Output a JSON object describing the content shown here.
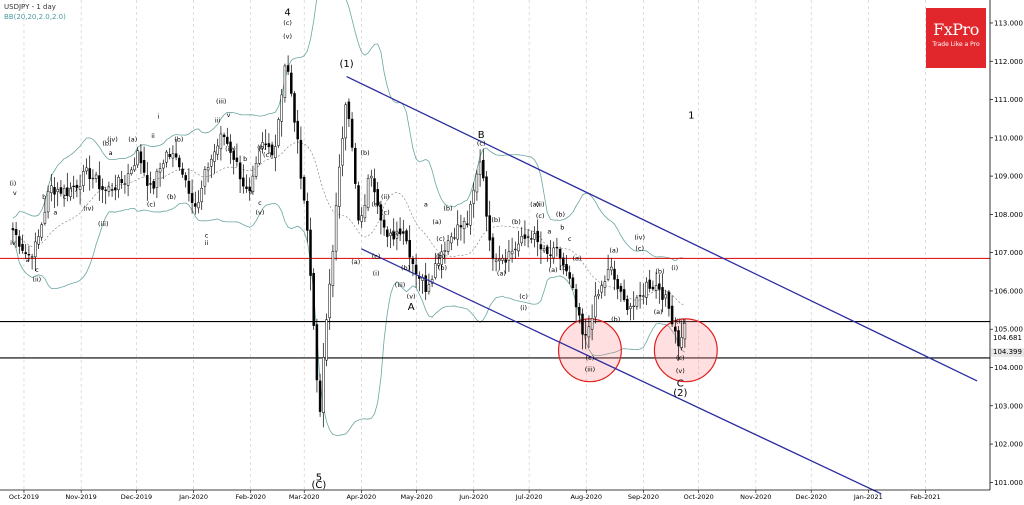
{
  "header": {
    "symbol_label": "USDJPY - 1 day",
    "bb_label": "BB(20,20,2.0,2.0)"
  },
  "logo": {
    "brand": "FxPro",
    "tagline": "Trade Like a Pro"
  },
  "price_badges": [
    {
      "text": "104.681",
      "bg": "#ffffff",
      "fg": "#000000"
    },
    {
      "text": "104.399",
      "bg": "#e8e8e8",
      "fg": "#000000"
    }
  ],
  "colors": {
    "candle": "#000000",
    "bollinger": "#6aa6a2",
    "channel": "#2c2ca0",
    "resistance": "#e02020",
    "support": "#000000",
    "circle_fill": "rgba(255,140,140,0.28)",
    "circle_stroke": "#e02020"
  },
  "chart_data": {
    "type": "candlestick",
    "title": "USDJPY - 1 day",
    "ylim": [
      100.8,
      113.6
    ],
    "y_ticks": [
      "101.000",
      "102.000",
      "103.000",
      "104.000",
      "105.000",
      "106.000",
      "107.000",
      "108.000",
      "109.000",
      "110.000",
      "111.000",
      "112.000",
      "113.000"
    ],
    "x_ticks": [
      "Oct-2019",
      "Nov-2019",
      "Dec-2019",
      "Jan-2020",
      "Feb-2020",
      "Mar-2020",
      "Apr-2020",
      "May-2020",
      "Jun-2020",
      "Jul-2020",
      "Aug-2020",
      "Sep-2020",
      "Oct-2020",
      "Nov-2020",
      "Dec-2020",
      "Jan-2021",
      "Feb-2021"
    ],
    "horizontal_levels": [
      {
        "value": 106.85,
        "color": "#e02020",
        "kind": "resistance"
      },
      {
        "value": 105.2,
        "color": "#000000",
        "kind": "support"
      },
      {
        "value": 104.25,
        "color": "#000000",
        "kind": "support"
      }
    ],
    "close_path": [
      [
        "2019-09-25",
        107.6
      ],
      [
        "2019-10-03",
        106.9
      ],
      [
        "2019-10-08",
        107.2
      ],
      [
        "2019-10-15",
        108.7
      ],
      [
        "2019-10-25",
        108.6
      ],
      [
        "2019-11-05",
        109.1
      ],
      [
        "2019-11-14",
        108.6
      ],
      [
        "2019-11-25",
        108.9
      ],
      [
        "2019-12-02",
        109.6
      ],
      [
        "2019-12-09",
        108.6
      ],
      [
        "2019-12-17",
        109.6
      ],
      [
        "2019-12-24",
        109.4
      ],
      [
        "2020-01-03",
        108.1
      ],
      [
        "2020-01-08",
        109.2
      ],
      [
        "2020-01-17",
        110.1
      ],
      [
        "2020-01-23",
        109.5
      ],
      [
        "2020-01-31",
        108.4
      ],
      [
        "2020-02-07",
        109.8
      ],
      [
        "2020-02-14",
        109.7
      ],
      [
        "2020-02-20",
        112.1
      ],
      [
        "2020-02-25",
        110.4
      ],
      [
        "2020-03-02",
        108.0
      ],
      [
        "2020-03-06",
        105.4
      ],
      [
        "2020-03-09",
        102.4
      ],
      [
        "2020-03-12",
        104.6
      ],
      [
        "2020-03-17",
        107.4
      ],
      [
        "2020-03-24",
        111.3
      ],
      [
        "2020-03-31",
        107.5
      ],
      [
        "2020-04-06",
        109.2
      ],
      [
        "2020-04-15",
        107.3
      ],
      [
        "2020-04-23",
        107.7
      ],
      [
        "2020-04-30",
        106.6
      ],
      [
        "2020-05-06",
        106.1
      ],
      [
        "2020-05-15",
        107.1
      ],
      [
        "2020-05-22",
        107.6
      ],
      [
        "2020-05-29",
        107.8
      ],
      [
        "2020-06-05",
        109.6
      ],
      [
        "2020-06-10",
        107.0
      ],
      [
        "2020-06-18",
        106.9
      ],
      [
        "2020-06-25",
        107.2
      ],
      [
        "2020-07-02",
        107.5
      ],
      [
        "2020-07-10",
        106.9
      ],
      [
        "2020-07-17",
        107.0
      ],
      [
        "2020-07-24",
        106.1
      ],
      [
        "2020-07-31",
        104.6
      ],
      [
        "2020-08-05",
        105.6
      ],
      [
        "2020-08-14",
        106.6
      ],
      [
        "2020-08-21",
        105.7
      ],
      [
        "2020-08-28",
        105.6
      ],
      [
        "2020-09-03",
        106.2
      ],
      [
        "2020-09-10",
        106.1
      ],
      [
        "2020-09-16",
        105.4
      ],
      [
        "2020-09-21",
        104.5
      ],
      [
        "2020-09-24",
        105.4
      ]
    ],
    "channel_lines": [
      {
        "from": [
          "2020-03-24",
          111.6
        ],
        "to": [
          "2021-03-01",
          103.65
        ]
      },
      {
        "from": [
          "2020-04-01",
          107.1
        ],
        "to": [
          "2021-01-08",
          100.7
        ]
      }
    ],
    "circles": [
      {
        "center": [
          "2020-08-03",
          104.45
        ],
        "radius_price": 0.82
      },
      {
        "center": [
          "2020-09-24",
          104.45
        ],
        "radius_price": 0.82
      }
    ],
    "wave_labels": [
      {
        "t": "2019-09-25",
        "y": 108.75,
        "text": "(i)"
      },
      {
        "t": "2019-09-26",
        "y": 108.5,
        "text": "v"
      },
      {
        "t": "2019-09-25",
        "y": 107.2,
        "text": "iv"
      },
      {
        "t": "2019-10-03",
        "y": 106.75,
        "text": "a"
      },
      {
        "t": "2019-10-08",
        "y": 106.25,
        "text": "(ii)"
      },
      {
        "t": "2019-10-08",
        "y": 106.5,
        "text": "c"
      },
      {
        "t": "2019-10-12",
        "y": 108.4,
        "text": "b"
      },
      {
        "t": "2019-10-18",
        "y": 108.0,
        "text": "a"
      },
      {
        "t": "2019-10-23",
        "y": 108.4,
        "text": "c"
      },
      {
        "t": "2019-10-28",
        "y": 108.6,
        "text": "(i)"
      },
      {
        "t": "2019-11-05",
        "y": 108.1,
        "text": "(iv)"
      },
      {
        "t": "2019-11-13",
        "y": 107.7,
        "text": "(iii)"
      },
      {
        "t": "2019-11-15",
        "y": 109.8,
        "text": "(b)"
      },
      {
        "t": "2019-11-18",
        "y": 109.9,
        "text": "(iv)"
      },
      {
        "t": "2019-11-17",
        "y": 109.55,
        "text": "a"
      },
      {
        "t": "2019-11-29",
        "y": 109.9,
        "text": "(a)"
      },
      {
        "t": "2019-12-09",
        "y": 108.2,
        "text": "(c)"
      },
      {
        "t": "2019-12-10",
        "y": 110.0,
        "text": "ii"
      },
      {
        "t": "2019-12-13",
        "y": 110.5,
        "text": "i"
      },
      {
        "t": "2019-12-20",
        "y": 108.4,
        "text": "(b)"
      },
      {
        "t": "2019-12-24",
        "y": 109.9,
        "text": "(b)"
      },
      {
        "t": "2020-01-08",
        "y": 107.4,
        "text": "c"
      },
      {
        "t": "2020-01-08",
        "y": 107.2,
        "text": "ii"
      },
      {
        "t": "2020-01-14",
        "y": 110.4,
        "text": "iii"
      },
      {
        "t": "2020-01-16",
        "y": 110.9,
        "text": "(iii)"
      },
      {
        "t": "2020-01-20",
        "y": 110.55,
        "text": "v"
      },
      {
        "t": "2020-01-21",
        "y": 109.65,
        "text": "(iv)"
      },
      {
        "t": "2020-01-29",
        "y": 109.4,
        "text": "b"
      },
      {
        "t": "2020-02-01",
        "y": 108.55,
        "text": "a"
      },
      {
        "t": "2020-02-06",
        "y": 108.0,
        "text": "(v)"
      },
      {
        "t": "2020-02-06",
        "y": 108.25,
        "text": "c"
      },
      {
        "t": "2020-02-07",
        "y": 109.7,
        "text": "(b)"
      },
      {
        "t": "2020-02-10",
        "y": 109.5,
        "text": "(c)"
      },
      {
        "t": "2020-02-21",
        "y": 113.2,
        "text": "4"
      },
      {
        "t": "2020-02-21",
        "y": 112.95,
        "text": "(c)"
      },
      {
        "t": "2020-02-21",
        "y": 112.6,
        "text": "(v)"
      },
      {
        "t": "2020-03-09",
        "y": 101.05,
        "text": "5"
      },
      {
        "t": "2020-03-09",
        "y": 100.85,
        "text": "(C)"
      },
      {
        "t": "2020-03-24",
        "y": 111.85,
        "text": "(1)"
      },
      {
        "t": "2020-03-29",
        "y": 106.7,
        "text": "(a)"
      },
      {
        "t": "2020-04-03",
        "y": 109.55,
        "text": "(b)"
      },
      {
        "t": "2020-04-09",
        "y": 108.2,
        "text": "(a)"
      },
      {
        "t": "2020-04-09",
        "y": 106.85,
        "text": "(c)"
      },
      {
        "t": "2020-04-09",
        "y": 106.4,
        "text": "(i)"
      },
      {
        "t": "2020-04-14",
        "y": 108.4,
        "text": "(ii)"
      },
      {
        "t": "2020-04-14",
        "y": 108.0,
        "text": "(c)"
      },
      {
        "t": "2020-04-20",
        "y": 107.45,
        "text": "(iv)"
      },
      {
        "t": "2020-04-22",
        "y": 106.1,
        "text": "(iii)"
      },
      {
        "t": "2020-04-25",
        "y": 106.55,
        "text": "(b)"
      },
      {
        "t": "2020-04-28",
        "y": 105.8,
        "text": "(v)"
      },
      {
        "t": "2020-04-28",
        "y": 105.5,
        "text": "A"
      },
      {
        "t": "2020-05-06",
        "y": 108.2,
        "text": "a"
      },
      {
        "t": "2020-05-12",
        "y": 107.75,
        "text": "(a)"
      },
      {
        "t": "2020-05-14",
        "y": 107.3,
        "text": "(c)"
      },
      {
        "t": "2020-05-14",
        "y": 106.85,
        "text": "(b)"
      },
      {
        "t": "2020-05-18",
        "y": 108.1,
        "text": "(b)"
      },
      {
        "t": "2020-05-15",
        "y": 106.55,
        "text": "(b)"
      },
      {
        "t": "2020-06-05",
        "y": 110.0,
        "text": "B"
      },
      {
        "t": "2020-06-05",
        "y": 109.8,
        "text": "(c)"
      },
      {
        "t": "2020-06-13",
        "y": 107.8,
        "text": "(b)"
      },
      {
        "t": "2020-06-16",
        "y": 106.4,
        "text": "(a)"
      },
      {
        "t": "2020-06-24",
        "y": 107.75,
        "text": "(b)"
      },
      {
        "t": "2020-06-28",
        "y": 105.8,
        "text": "(c)"
      },
      {
        "t": "2020-06-28",
        "y": 105.5,
        "text": "(i)"
      },
      {
        "t": "2020-07-04",
        "y": 108.2,
        "text": "(a)"
      },
      {
        "t": "2020-07-07",
        "y": 108.2,
        "text": "(ii)"
      },
      {
        "t": "2020-07-07",
        "y": 107.9,
        "text": "(c)"
      },
      {
        "t": "2020-07-12",
        "y": 107.5,
        "text": "a"
      },
      {
        "t": "2020-07-14",
        "y": 106.5,
        "text": "(a)"
      },
      {
        "t": "2020-07-18",
        "y": 107.95,
        "text": "(b)"
      },
      {
        "t": "2020-07-19",
        "y": 107.6,
        "text": "b"
      },
      {
        "t": "2020-07-20",
        "y": 106.55,
        "text": "(b)"
      },
      {
        "t": "2020-07-23",
        "y": 107.3,
        "text": "c"
      },
      {
        "t": "2020-07-27",
        "y": 106.8,
        "text": "(a)"
      },
      {
        "t": "2020-08-03",
        "y": 104.2,
        "text": "(c)"
      },
      {
        "t": "2020-08-03",
        "y": 103.9,
        "text": "(iii)"
      },
      {
        "t": "2020-08-16",
        "y": 107.0,
        "text": "(a)"
      },
      {
        "t": "2020-08-17",
        "y": 105.2,
        "text": "(b)"
      },
      {
        "t": "2020-08-30",
        "y": 107.35,
        "text": "(iv)"
      },
      {
        "t": "2020-08-30",
        "y": 107.05,
        "text": "(c)"
      },
      {
        "t": "2020-09-10",
        "y": 106.45,
        "text": "(b)"
      },
      {
        "t": "2020-09-09",
        "y": 105.4,
        "text": "(a)"
      },
      {
        "t": "2020-09-18",
        "y": 106.55,
        "text": "(i)"
      },
      {
        "t": "2020-09-21",
        "y": 105.15,
        "text": "(ii)"
      },
      {
        "t": "2020-09-21",
        "y": 104.2,
        "text": "(c)"
      },
      {
        "t": "2020-09-21",
        "y": 103.85,
        "text": "(v)"
      },
      {
        "t": "2020-09-21",
        "y": 103.5,
        "text": "C"
      },
      {
        "t": "2020-09-21",
        "y": 103.25,
        "text": "(2)"
      },
      {
        "t": "2020-09-27",
        "y": 110.5,
        "text": "1"
      }
    ]
  }
}
